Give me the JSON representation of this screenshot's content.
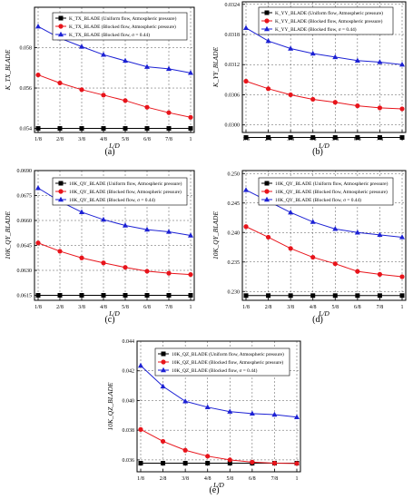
{
  "figure": {
    "panels": [
      {
        "caption": "(a)",
        "chart_data": {
          "type": "line",
          "x": [
            "1/8",
            "2/8",
            "3/8",
            "4/8",
            "5/8",
            "6/8",
            "7/8",
            "1"
          ],
          "xlabel": "L/D",
          "ylabel": "K_TX_BLADE",
          "yticks": [
            "0.054",
            "0.056",
            "0.058"
          ],
          "ylim": [
            0.0538,
            0.06
          ],
          "grid": true,
          "legend_position": "top-right",
          "series": [
            {
              "name": "K_TX_BLADE (Uniform flow, Atmospheric pressure)",
              "marker": "square",
              "color": "#000000",
              "values": [
                0.054,
                0.054,
                0.054,
                0.054,
                0.054,
                0.054,
                0.054,
                0.054
              ]
            },
            {
              "name": "K_TX_BLADE (Blocked flow, Atmospheric pressure)",
              "marker": "circle",
              "color": "#e8141b",
              "values": [
                0.05665,
                0.05625,
                0.05592,
                0.05565,
                0.05538,
                0.05505,
                0.05478,
                0.05455
              ]
            },
            {
              "name": "K_TX_BLADE (Blocked flow, σ = 0.44)",
              "marker": "triangle",
              "color": "#1c21d4",
              "values": [
                0.05905,
                0.05847,
                0.05805,
                0.05765,
                0.05735,
                0.05705,
                0.05695,
                0.05675
              ]
            }
          ]
        }
      },
      {
        "caption": "(b)",
        "chart_data": {
          "type": "line",
          "x": [
            "1/8",
            "2/8",
            "3/8",
            "4/8",
            "5/8",
            "6/8",
            "7/8",
            "1"
          ],
          "xlabel": "L/D",
          "ylabel": "K_YY_BLADE",
          "yticks": [
            "0.0300",
            "0.0306",
            "0.0312",
            "0.0318",
            "0.0324"
          ],
          "ylim": [
            0.02985,
            0.03245
          ],
          "grid": true,
          "legend_position": "top-right",
          "series": [
            {
              "name": "K_YY_BLADE (Uniform flow, Atmospheric pressure)",
              "marker": "square",
              "color": "#000000",
              "values": [
                0.02975,
                0.02975,
                0.02975,
                0.02975,
                0.02975,
                0.02975,
                0.02975,
                0.02975
              ]
            },
            {
              "name": "K_YY_BLADE (Blocked flow, Atmospheric pressure)",
              "marker": "circle",
              "color": "#e8141b",
              "values": [
                0.03087,
                0.03072,
                0.0306,
                0.03051,
                0.03045,
                0.03038,
                0.03034,
                0.03032
              ]
            },
            {
              "name": "K_YY_BLADE (Blocked flow, σ = 0.44)",
              "marker": "triangle",
              "color": "#1c21d4",
              "values": [
                0.03193,
                0.03167,
                0.03152,
                0.03142,
                0.03135,
                0.03128,
                0.03125,
                0.0312
              ]
            }
          ]
        }
      },
      {
        "caption": "(c)",
        "chart_data": {
          "type": "line",
          "x": [
            "1/8",
            "2/8",
            "3/8",
            "4/8",
            "5/8",
            "6/8",
            "7/8",
            "1"
          ],
          "xlabel": "L/D",
          "ylabel": "10K_QY_BLADE",
          "yticks": [
            "0.0615",
            "0.0630",
            "0.0645",
            "0.0660",
            "0.0675",
            "0.0690"
          ],
          "ylim": [
            0.0612,
            0.069
          ],
          "grid": true,
          "legend_position": "top-right",
          "series": [
            {
              "name": "10K_QY_BLADE (Uniform flow, Atmospheric pressure)",
              "marker": "square",
              "color": "#000000",
              "values": [
                0.0615,
                0.0615,
                0.0615,
                0.0615,
                0.0615,
                0.0615,
                0.0615,
                0.0615
              ]
            },
            {
              "name": "10K_QY_BLADE (Blocked flow, Atmospheric pressure)",
              "marker": "circle",
              "color": "#e8141b",
              "values": [
                0.06465,
                0.06415,
                0.06375,
                0.06345,
                0.06318,
                0.06295,
                0.06283,
                0.06275
              ]
            },
            {
              "name": "10K_QY_BLADE (Blocked flow, σ = 0.44)",
              "marker": "triangle",
              "color": "#1c21d4",
              "values": [
                0.06795,
                0.06715,
                0.0665,
                0.06605,
                0.0657,
                0.06545,
                0.06532,
                0.0651
              ]
            }
          ]
        }
      },
      {
        "caption": "(d)",
        "chart_data": {
          "type": "line",
          "x": [
            "1/8",
            "2/8",
            "3/8",
            "4/8",
            "5/8",
            "6/8",
            "7/8",
            "1"
          ],
          "xlabel": "L/D",
          "ylabel": "10K_QY_BLADE",
          "yticks": [
            "0.230",
            "0.235",
            "0.240",
            "0.245",
            "0.250"
          ],
          "ylim": [
            0.2285,
            0.2505
          ],
          "grid": true,
          "legend_position": "top-right",
          "series": [
            {
              "name": "10K_QY_BLADE (Uniform flow, Atmospheric pressure)",
              "marker": "square",
              "color": "#000000",
              "values": [
                0.2293,
                0.2293,
                0.2293,
                0.2293,
                0.2293,
                0.2293,
                0.2293,
                0.2293
              ]
            },
            {
              "name": "10K_QY_BLADE (Blocked flow, Atmospheric pressure)",
              "marker": "circle",
              "color": "#e8141b",
              "values": [
                0.241,
                0.2392,
                0.2373,
                0.2358,
                0.2347,
                0.2334,
                0.2329,
                0.2325
              ]
            },
            {
              "name": "10K_QY_BLADE (Blocked flow, σ = 0.44)",
              "marker": "triangle",
              "color": "#1c21d4",
              "values": [
                0.2472,
                0.2453,
                0.2434,
                0.2418,
                0.2406,
                0.24,
                0.2396,
                0.2392
              ]
            }
          ]
        }
      },
      {
        "caption": "(e)",
        "chart_data": {
          "type": "line",
          "x": [
            "1/8",
            "2/8",
            "3/8",
            "4/8",
            "5/8",
            "6/8",
            "7/8",
            "1"
          ],
          "xlabel": "L/D",
          "ylabel": "10K_QZ_BLADE",
          "yticks": [
            "0.036",
            "0.038",
            "0.040",
            "0.042",
            "0.044"
          ],
          "ylim": [
            0.0352,
            0.044
          ],
          "grid": true,
          "legend_position": "top-right",
          "series": [
            {
              "name": "10K_QZ_BLADE (Uniform flow, Atmospheric pressure)",
              "marker": "square",
              "color": "#000000",
              "values": [
                0.03578,
                0.03578,
                0.03578,
                0.03578,
                0.03578,
                0.03578,
                0.03578,
                0.03578
              ]
            },
            {
              "name": "10K_QZ_BLADE (Blocked flow, Atmospheric pressure)",
              "marker": "circle",
              "color": "#e8141b",
              "values": [
                0.03805,
                0.03725,
                0.03665,
                0.03625,
                0.036,
                0.03585,
                0.03578,
                0.03576
              ]
            },
            {
              "name": "10K_QZ_BLADE (Blocked flow, σ = 0.44)",
              "marker": "triangle",
              "color": "#1c21d4",
              "values": [
                0.04235,
                0.04095,
                0.03995,
                0.03955,
                0.03925,
                0.03912,
                0.03905,
                0.03888
              ]
            }
          ]
        }
      }
    ]
  }
}
